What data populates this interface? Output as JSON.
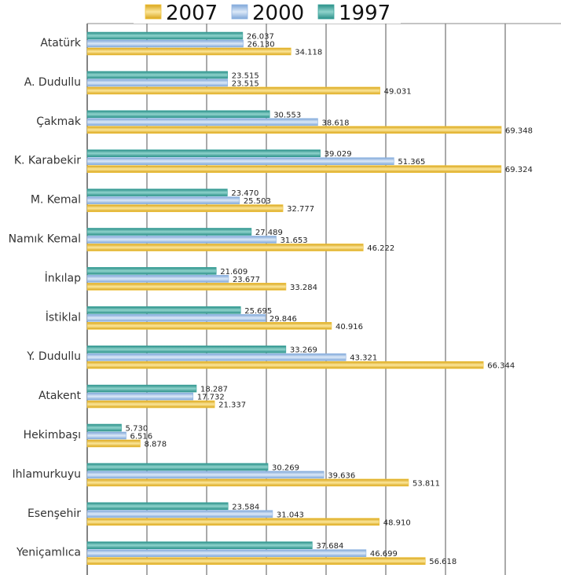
{
  "chart_data": {
    "type": "bar",
    "orientation": "horizontal",
    "title": "",
    "xlabel": "",
    "ylabel": "",
    "xlim": [
      0,
      80000
    ],
    "grid": true,
    "legend_position": "top",
    "categories": [
      "Atatürk",
      "A. Dudullu",
      "Çakmak",
      "K. Karabekir",
      "M. Kemal",
      "Namık Kemal",
      "İnkılap",
      "İstiklal",
      "Y. Dudullu",
      "Atakent",
      "Hekimbaşı",
      "Ihlamurkuyu",
      "Esenşehir",
      "Yeniçamlıca"
    ],
    "series": [
      {
        "name": "1997",
        "color": "#3aa39c",
        "values": [
          26037,
          23515,
          30553,
          39029,
          23470,
          27489,
          21609,
          25695,
          33269,
          18287,
          5730,
          30269,
          23584,
          37684
        ],
        "labels": [
          "26.037",
          "23.515",
          "30.553",
          "39.029",
          "23.470",
          "27.489",
          "21.609",
          "25.695",
          "33.269",
          "18.287",
          "5.730",
          "30.269",
          "23.584",
          "37.684"
        ]
      },
      {
        "name": "2000",
        "color": "#8eb4e3",
        "values": [
          26130,
          23515,
          38618,
          51365,
          25503,
          31653,
          23677,
          29846,
          43321,
          17732,
          6516,
          39636,
          31043,
          46699
        ],
        "labels": [
          "26.130",
          "23.515",
          "38.618",
          "51.365",
          "25.503",
          "31.653",
          "23.677",
          "29.846",
          "43.321",
          "17.732",
          "6.516",
          "39.636",
          "31.043",
          "46.699"
        ]
      },
      {
        "name": "2007",
        "color": "#f0c43a",
        "values": [
          34118,
          49031,
          69348,
          69324,
          32777,
          46222,
          33284,
          40916,
          66344,
          21337,
          8878,
          53811,
          48910,
          56618
        ],
        "labels": [
          "34.118",
          "49.031",
          "69.348",
          "69.324",
          "32.777",
          "46.222",
          "33.284",
          "40.916",
          "66.344",
          "21.337",
          "8.878",
          "53.811",
          "48.910",
          "56.618"
        ]
      }
    ],
    "legend_order": [
      "2007",
      "2000",
      "1997"
    ]
  }
}
